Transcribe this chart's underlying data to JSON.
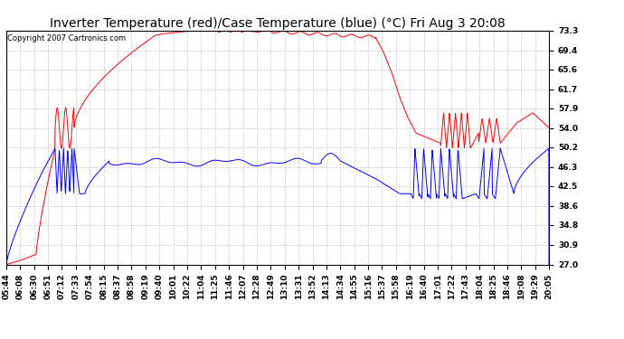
{
  "title": "Inverter Temperature (red)/Case Temperature (blue) (°C) Fri Aug 3 20:08",
  "copyright": "Copyright 2007 Cartronics.com",
  "y_ticks": [
    27.0,
    30.9,
    34.8,
    38.6,
    42.5,
    46.3,
    50.2,
    54.0,
    57.9,
    61.7,
    65.6,
    69.4,
    73.3
  ],
  "x_labels": [
    "05:44",
    "06:08",
    "06:30",
    "06:51",
    "07:12",
    "07:33",
    "07:54",
    "08:15",
    "08:37",
    "08:58",
    "09:19",
    "09:40",
    "10:01",
    "10:22",
    "11:04",
    "11:25",
    "11:46",
    "12:07",
    "12:28",
    "12:49",
    "13:10",
    "13:31",
    "13:52",
    "14:13",
    "14:34",
    "14:55",
    "15:16",
    "15:37",
    "15:58",
    "16:19",
    "16:40",
    "17:01",
    "17:22",
    "17:43",
    "18:04",
    "18:25",
    "18:46",
    "19:08",
    "19:29",
    "20:05"
  ],
  "background_color": "#ffffff",
  "grid_color": "#c8c8c8",
  "red_color": "#ff0000",
  "blue_color": "#0000ff",
  "title_fontsize": 10,
  "tick_fontsize": 6.5,
  "y_min": 27.0,
  "y_max": 73.3
}
